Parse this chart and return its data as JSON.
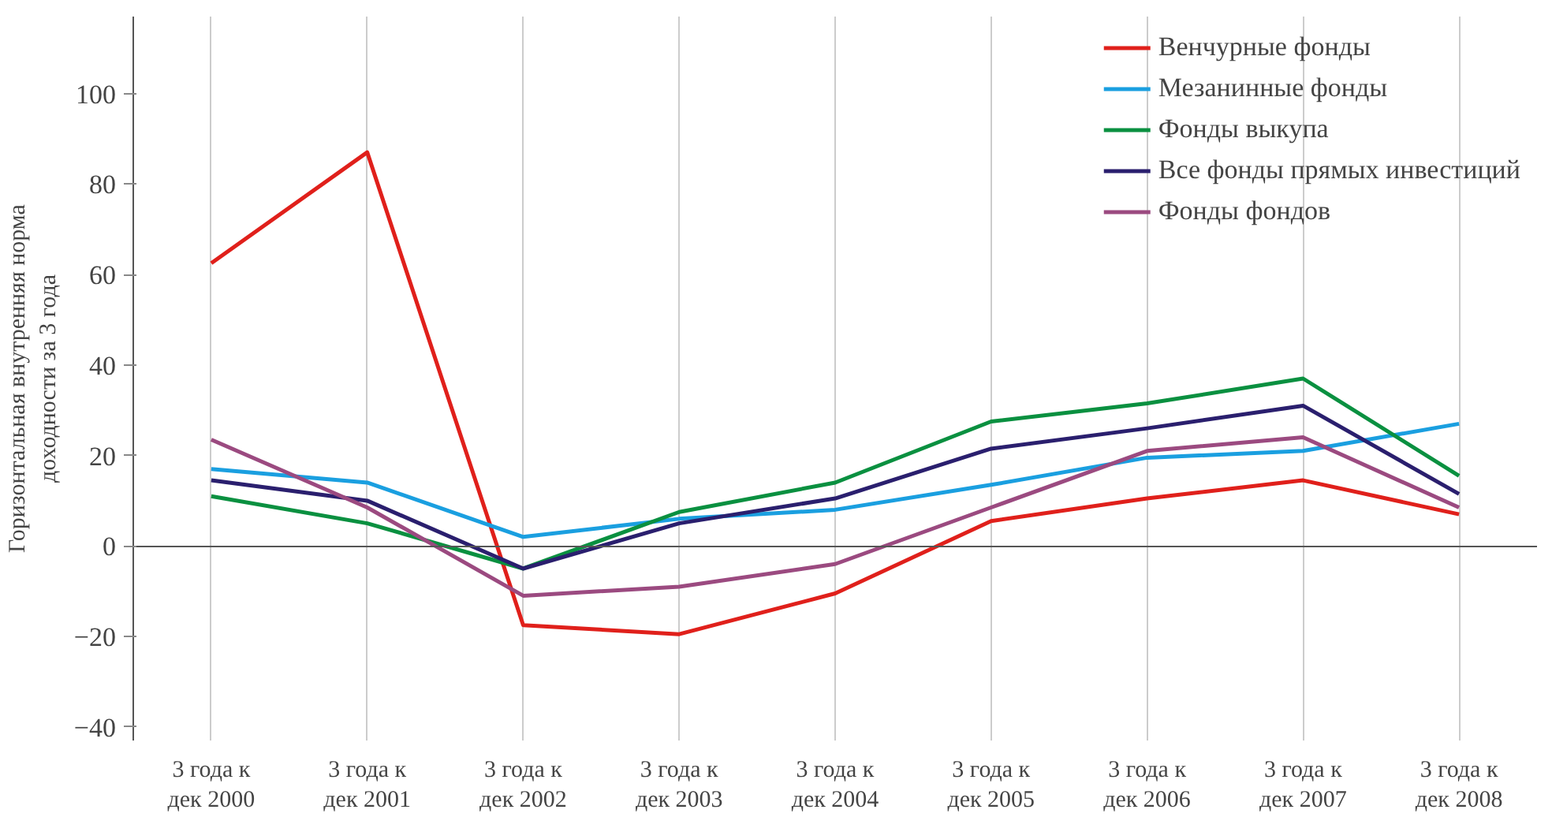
{
  "chart_data": {
    "type": "line",
    "ylabel": "Горизонтальная внутренняя норма\nдоходности за 3 года",
    "categories": [
      "3 года к\nдек 2000",
      "3 года к\nдек 2001",
      "3 года к\nдек 2002",
      "3 года к\nдек 2003",
      "3 года к\nдек 2004",
      "3 года к\nдек 2005",
      "3 года к\nдек 2006",
      "3 года к\nдек 2007",
      "3 года к\nдек 2008"
    ],
    "series": [
      {
        "name": "Венчурные фонды",
        "color": "#e0201b",
        "values": [
          62.5,
          87,
          -17.5,
          -19.5,
          -10.5,
          5.5,
          10.5,
          14.5,
          7
        ]
      },
      {
        "name": "Мезанинные фонды",
        "color": "#1a9fe0",
        "values": [
          17,
          14,
          2,
          6,
          8,
          13.5,
          19.5,
          21,
          27
        ]
      },
      {
        "name": "Фонды выкупа",
        "color": "#0a9040",
        "values": [
          11,
          5,
          -5,
          7.5,
          14,
          27.5,
          31.5,
          37,
          15.5
        ]
      },
      {
        "name": "Все фонды прямых инвестиций",
        "color": "#2a1f6e",
        "values": [
          14.5,
          10,
          -5,
          5,
          10.5,
          21.5,
          26,
          31,
          11.5
        ]
      },
      {
        "name": "Фонды фондов",
        "color": "#9b4a80",
        "values": [
          23.5,
          8.5,
          -11,
          -9,
          -4,
          8.5,
          21,
          24,
          8.5
        ]
      }
    ],
    "ylim": [
      -43,
      117
    ],
    "yticks": [
      -40,
      -20,
      0,
      20,
      40,
      60,
      80,
      100
    ],
    "grid": "x",
    "legend": "top right",
    "marker": "none",
    "line_style": "solid"
  }
}
